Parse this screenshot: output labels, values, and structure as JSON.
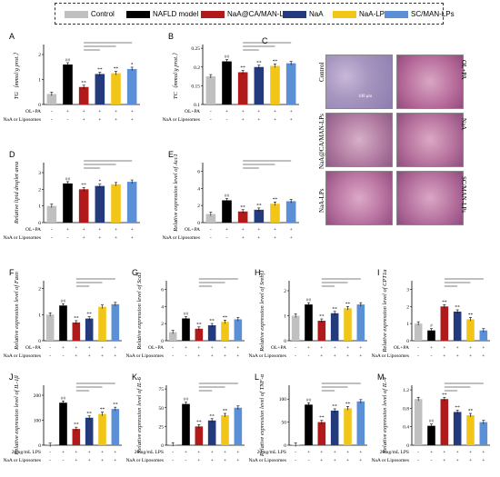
{
  "legend": [
    {
      "label": "Control",
      "color": "#c0c0c0"
    },
    {
      "label": "NAFLD model",
      "color": "#000000"
    },
    {
      "label": "NaA@CA/MAN-LPs",
      "color": "#b01a1a"
    },
    {
      "label": "NaA",
      "color": "#233a7c"
    },
    {
      "label": "NaA-LPs",
      "color": "#f2c618"
    },
    {
      "label": "SC/MAN-LPs",
      "color": "#5b8fd6"
    }
  ],
  "conditions": {
    "oa": "OL+PA",
    "lps": "20 ng/mL LPS",
    "naa": "NaA  or Liposomes",
    "row_oa": [
      "-",
      "+",
      "+",
      "+",
      "+",
      "+"
    ],
    "row_naa": [
      "-",
      "-",
      "+",
      "+",
      "+",
      "+"
    ]
  },
  "histology": {
    "label": "C",
    "row_labels": [
      "Control",
      "NaA@CA/MAN-LPs",
      "NaA-LPs"
    ],
    "right_labels": [
      "OL+PA",
      "NaA",
      "SC/MAN-LPs"
    ],
    "scale": "100 μm"
  },
  "chart_data": [
    {
      "id": "A",
      "type": "bar",
      "ylabel": "TG（mmol/g prot.）",
      "yticks": [
        "0",
        "1",
        "2"
      ],
      "ylim": [
        0,
        2.4
      ],
      "values": [
        0.42,
        1.6,
        0.7,
        1.22,
        1.25,
        1.42
      ],
      "sig": [
        "",
        "##",
        "**",
        "**",
        "**",
        "*"
      ]
    },
    {
      "id": "B",
      "type": "bar",
      "ylabel": "TC（mmol/g prot.）",
      "yticks": [
        "0.1",
        "0.15",
        "0.2",
        "0.25"
      ],
      "ylim": [
        0.1,
        0.26
      ],
      "values": [
        0.175,
        0.215,
        0.186,
        0.2,
        0.203,
        0.21
      ],
      "sig": [
        "",
        "##",
        "**",
        "**",
        "**",
        ""
      ]
    },
    {
      "id": "D",
      "type": "bar",
      "ylabel": "Relative lipid droplet area",
      "yticks": [
        "0",
        "1",
        "2",
        "3"
      ],
      "ylim": [
        0,
        3.6
      ],
      "values": [
        1.0,
        2.35,
        2.0,
        2.2,
        2.3,
        2.45
      ],
      "sig": [
        "",
        "##",
        "**",
        "*",
        "",
        ""
      ]
    },
    {
      "id": "E",
      "type": "bar",
      "ylabel": "Relative expression level of Acc1",
      "yticks": [
        "0",
        "2",
        "4",
        "6"
      ],
      "ylim": [
        0,
        7
      ],
      "values": [
        1.0,
        2.6,
        1.3,
        1.5,
        2.2,
        2.5
      ],
      "sig": [
        "",
        "##",
        "**",
        "**",
        "**",
        ""
      ]
    },
    {
      "id": "F",
      "type": "bar",
      "ylabel": "Relative expression level of Fasn",
      "yticks": [
        "0",
        "1",
        "2"
      ],
      "ylim": [
        0,
        2.3
      ],
      "values": [
        1.0,
        1.35,
        0.7,
        0.85,
        1.3,
        1.4
      ],
      "sig": [
        "",
        "##",
        "**",
        "**",
        "",
        ""
      ]
    },
    {
      "id": "G",
      "type": "bar",
      "ylabel": "Relative expression level of Scd1",
      "yticks": [
        "0",
        "2",
        "4",
        "6"
      ],
      "ylim": [
        0,
        7
      ],
      "values": [
        1.0,
        2.6,
        1.4,
        1.8,
        2.2,
        2.5
      ],
      "sig": [
        "",
        "##",
        "**",
        "**",
        "**",
        ""
      ]
    },
    {
      "id": "H",
      "type": "bar",
      "ylabel": "Relative expression level of Srebf1",
      "yticks": [
        "0",
        "1",
        "2"
      ],
      "ylim": [
        0,
        2.4
      ],
      "values": [
        1.0,
        1.45,
        0.8,
        1.1,
        1.3,
        1.45
      ],
      "sig": [
        "",
        "##",
        "**",
        "**",
        "**",
        ""
      ]
    },
    {
      "id": "I",
      "type": "bar",
      "ylabel": "Relative expression level of CPT1a",
      "yticks": [
        "0",
        "1",
        "2",
        "3"
      ],
      "ylim": [
        0,
        3.5
      ],
      "values": [
        1.0,
        0.6,
        2.0,
        1.7,
        1.25,
        0.6
      ],
      "sig": [
        "",
        "#",
        "**",
        "**",
        "**",
        ""
      ]
    },
    {
      "id": "J",
      "type": "bar",
      "ylabel": "Relative expression level of IL-1β",
      "yticks": [
        "0",
        "100",
        "200"
      ],
      "ylim": [
        0,
        240
      ],
      "values": [
        1,
        170,
        65,
        110,
        125,
        145
      ],
      "sig": [
        "",
        "##",
        "**",
        "**",
        "**",
        "**"
      ]
    },
    {
      "id": "K",
      "type": "bar",
      "ylabel": "Relative expression level of IL-6",
      "yticks": [
        "0",
        "25",
        "50",
        "75"
      ],
      "ylim": [
        0,
        80
      ],
      "values": [
        1,
        55,
        25,
        33,
        40,
        50
      ],
      "sig": [
        "",
        "##",
        "**",
        "**",
        "**",
        ""
      ]
    },
    {
      "id": "L",
      "type": "bar",
      "ylabel": "Relative expression level of TNF-α",
      "yticks": [
        "0",
        "50",
        "100"
      ],
      "ylim": [
        0,
        130
      ],
      "values": [
        1,
        88,
        50,
        75,
        80,
        95
      ],
      "sig": [
        "",
        "##",
        "**",
        "**",
        "**",
        ""
      ]
    },
    {
      "id": "M",
      "type": "bar",
      "ylabel": "Relative expression level of IL-4",
      "yticks": [
        "0",
        "0.4",
        "0.8",
        "1.2"
      ],
      "ylim": [
        0,
        1.3
      ],
      "values": [
        1.0,
        0.42,
        1.0,
        0.72,
        0.65,
        0.5
      ],
      "sig": [
        "",
        "##",
        "**",
        "**",
        "**",
        ""
      ]
    }
  ]
}
